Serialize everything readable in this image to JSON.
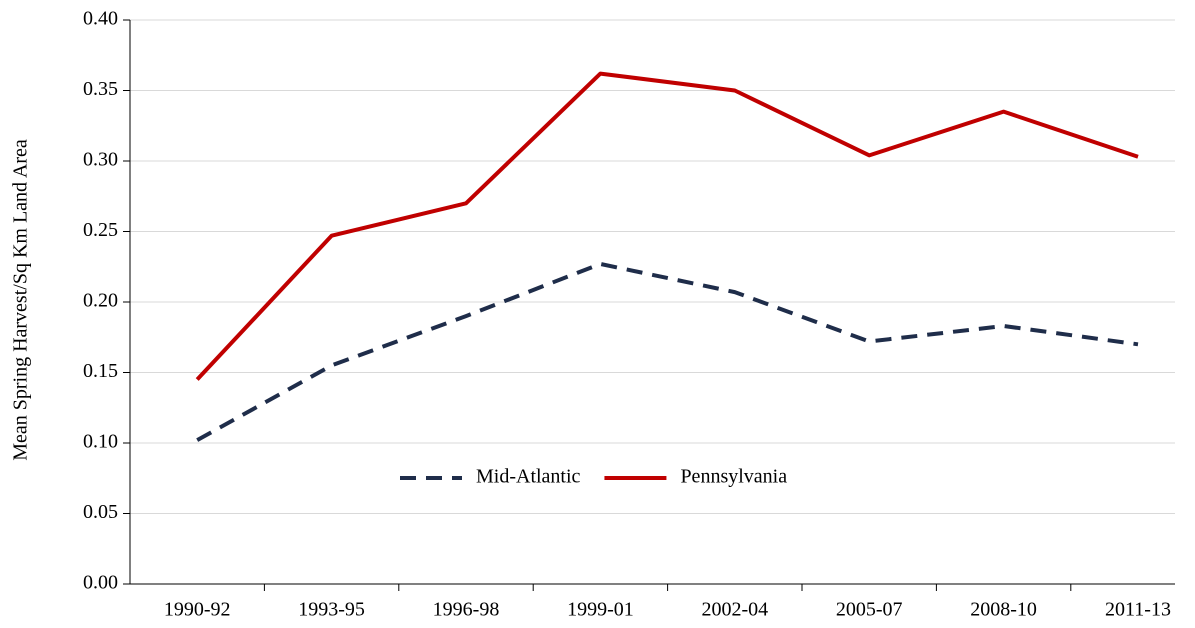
{
  "chart_data": {
    "type": "line",
    "y_label": "Mean Spring Harvest/Sq Km Land Area",
    "categories": [
      "1990-92",
      "1993-95",
      "1996-98",
      "1999-01",
      "2002-04",
      "2005-07",
      "2008-10",
      "2011-13"
    ],
    "series": [
      {
        "name": "Mid-Atlantic",
        "color": "#1f2d4a",
        "style": "dashed",
        "values": [
          0.102,
          0.155,
          0.19,
          0.227,
          0.207,
          0.172,
          0.183,
          0.17
        ]
      },
      {
        "name": "Pennsylvania",
        "color": "#c00000",
        "style": "solid",
        "values": [
          0.145,
          0.247,
          0.27,
          0.362,
          0.35,
          0.304,
          0.335,
          0.303
        ]
      }
    ],
    "ylim": [
      0,
      0.4
    ],
    "yticks": [
      {
        "value": 0,
        "label": "0.00"
      },
      {
        "value": 0.05,
        "label": "0.05"
      },
      {
        "value": 0.1,
        "label": "0.10"
      },
      {
        "value": 0.15,
        "label": "0.15"
      },
      {
        "value": 0.2,
        "label": "0.20"
      },
      {
        "value": 0.25,
        "label": "0.25"
      },
      {
        "value": 0.3,
        "label": "0.30"
      },
      {
        "value": 0.35,
        "label": "0.35"
      },
      {
        "value": 0.4,
        "label": "0.40"
      }
    ],
    "grid": true,
    "legend": "center"
  }
}
